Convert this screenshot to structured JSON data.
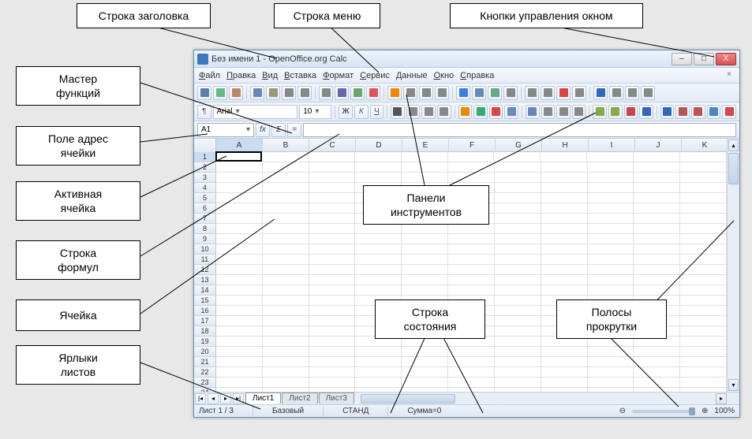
{
  "callouts": {
    "title_row": "Строка заголовка",
    "menu_row": "Строка меню",
    "win_ctrl": "Кнопки управления окном",
    "fn_wizard_1": "Мастер",
    "fn_wizard_2": "функций",
    "addr_1": "Поле адрес",
    "addr_2": "ячейки",
    "active_1": "Активная",
    "active_2": "ячейка",
    "formula_1": "Строка",
    "formula_2": "формул",
    "cell": "Ячейка",
    "tabs_1": "Ярлыки",
    "tabs_2": "листов",
    "toolbars_1": "Панели",
    "toolbars_2": "инструментов",
    "status_1": "Строка",
    "status_2": "состояния",
    "scroll_1": "Полосы",
    "scroll_2": "прокрутки"
  },
  "window": {
    "title": "Без имени 1 - OpenOffice.org Calc",
    "minimize": "–",
    "maximize": "□",
    "close": "X"
  },
  "menu": {
    "items": [
      "Файл",
      "Правка",
      "Вид",
      "Вставка",
      "Формат",
      "Сервис",
      "Данные",
      "Окно",
      "Справка"
    ]
  },
  "toolbar1_colors": [
    "#5a7fb0",
    "#6b8",
    "#b86",
    "#68b",
    "#997",
    "#888",
    "#888",
    "#888",
    "#66a",
    "#6a6",
    "#d55",
    "#e80",
    "#888",
    "#888",
    "#888",
    "#3a7fe2",
    "#68b",
    "#6a8",
    "#888",
    "#888",
    "#888",
    "#d44",
    "#888",
    "#36b",
    "#888",
    "#888",
    "#888"
  ],
  "toolbar2": {
    "font": "Arial",
    "size": "10",
    "bold": "Ж",
    "italic": "К",
    "underline": "Ч"
  },
  "toolbar2_colors": [
    "#333",
    "#333",
    "#333",
    "#555",
    "#555",
    "#555",
    "#555",
    "#888",
    "#888",
    "#888",
    "#e80",
    "#3a7",
    "#d44",
    "#68b",
    "#68b",
    "#888",
    "#888",
    "#888",
    "#8a4",
    "#8a4",
    "#c44",
    "#36b",
    "#36b",
    "#b55",
    "#b55",
    "#48c",
    "#d44"
  ],
  "formulabar": {
    "namebox": "A1",
    "fx": "fx",
    "sigma": "Σ",
    "eq": "="
  },
  "columns": [
    "A",
    "B",
    "C",
    "D",
    "E",
    "F",
    "G",
    "H",
    "I",
    "J",
    "K"
  ],
  "row_count": 26,
  "active_cell": {
    "row": 1,
    "col": 0
  },
  "tabs": {
    "nav": [
      "|◂",
      "◂",
      "▸",
      "▸|"
    ],
    "sheets": [
      "Лист1",
      "Лист2",
      "Лист3"
    ],
    "active_index": 0
  },
  "status": {
    "sheet_pos": "Лист 1 / 3",
    "style": "Базовый",
    "mode": "СТАНД",
    "sum": "Сумма=0",
    "zoom": "100%"
  }
}
